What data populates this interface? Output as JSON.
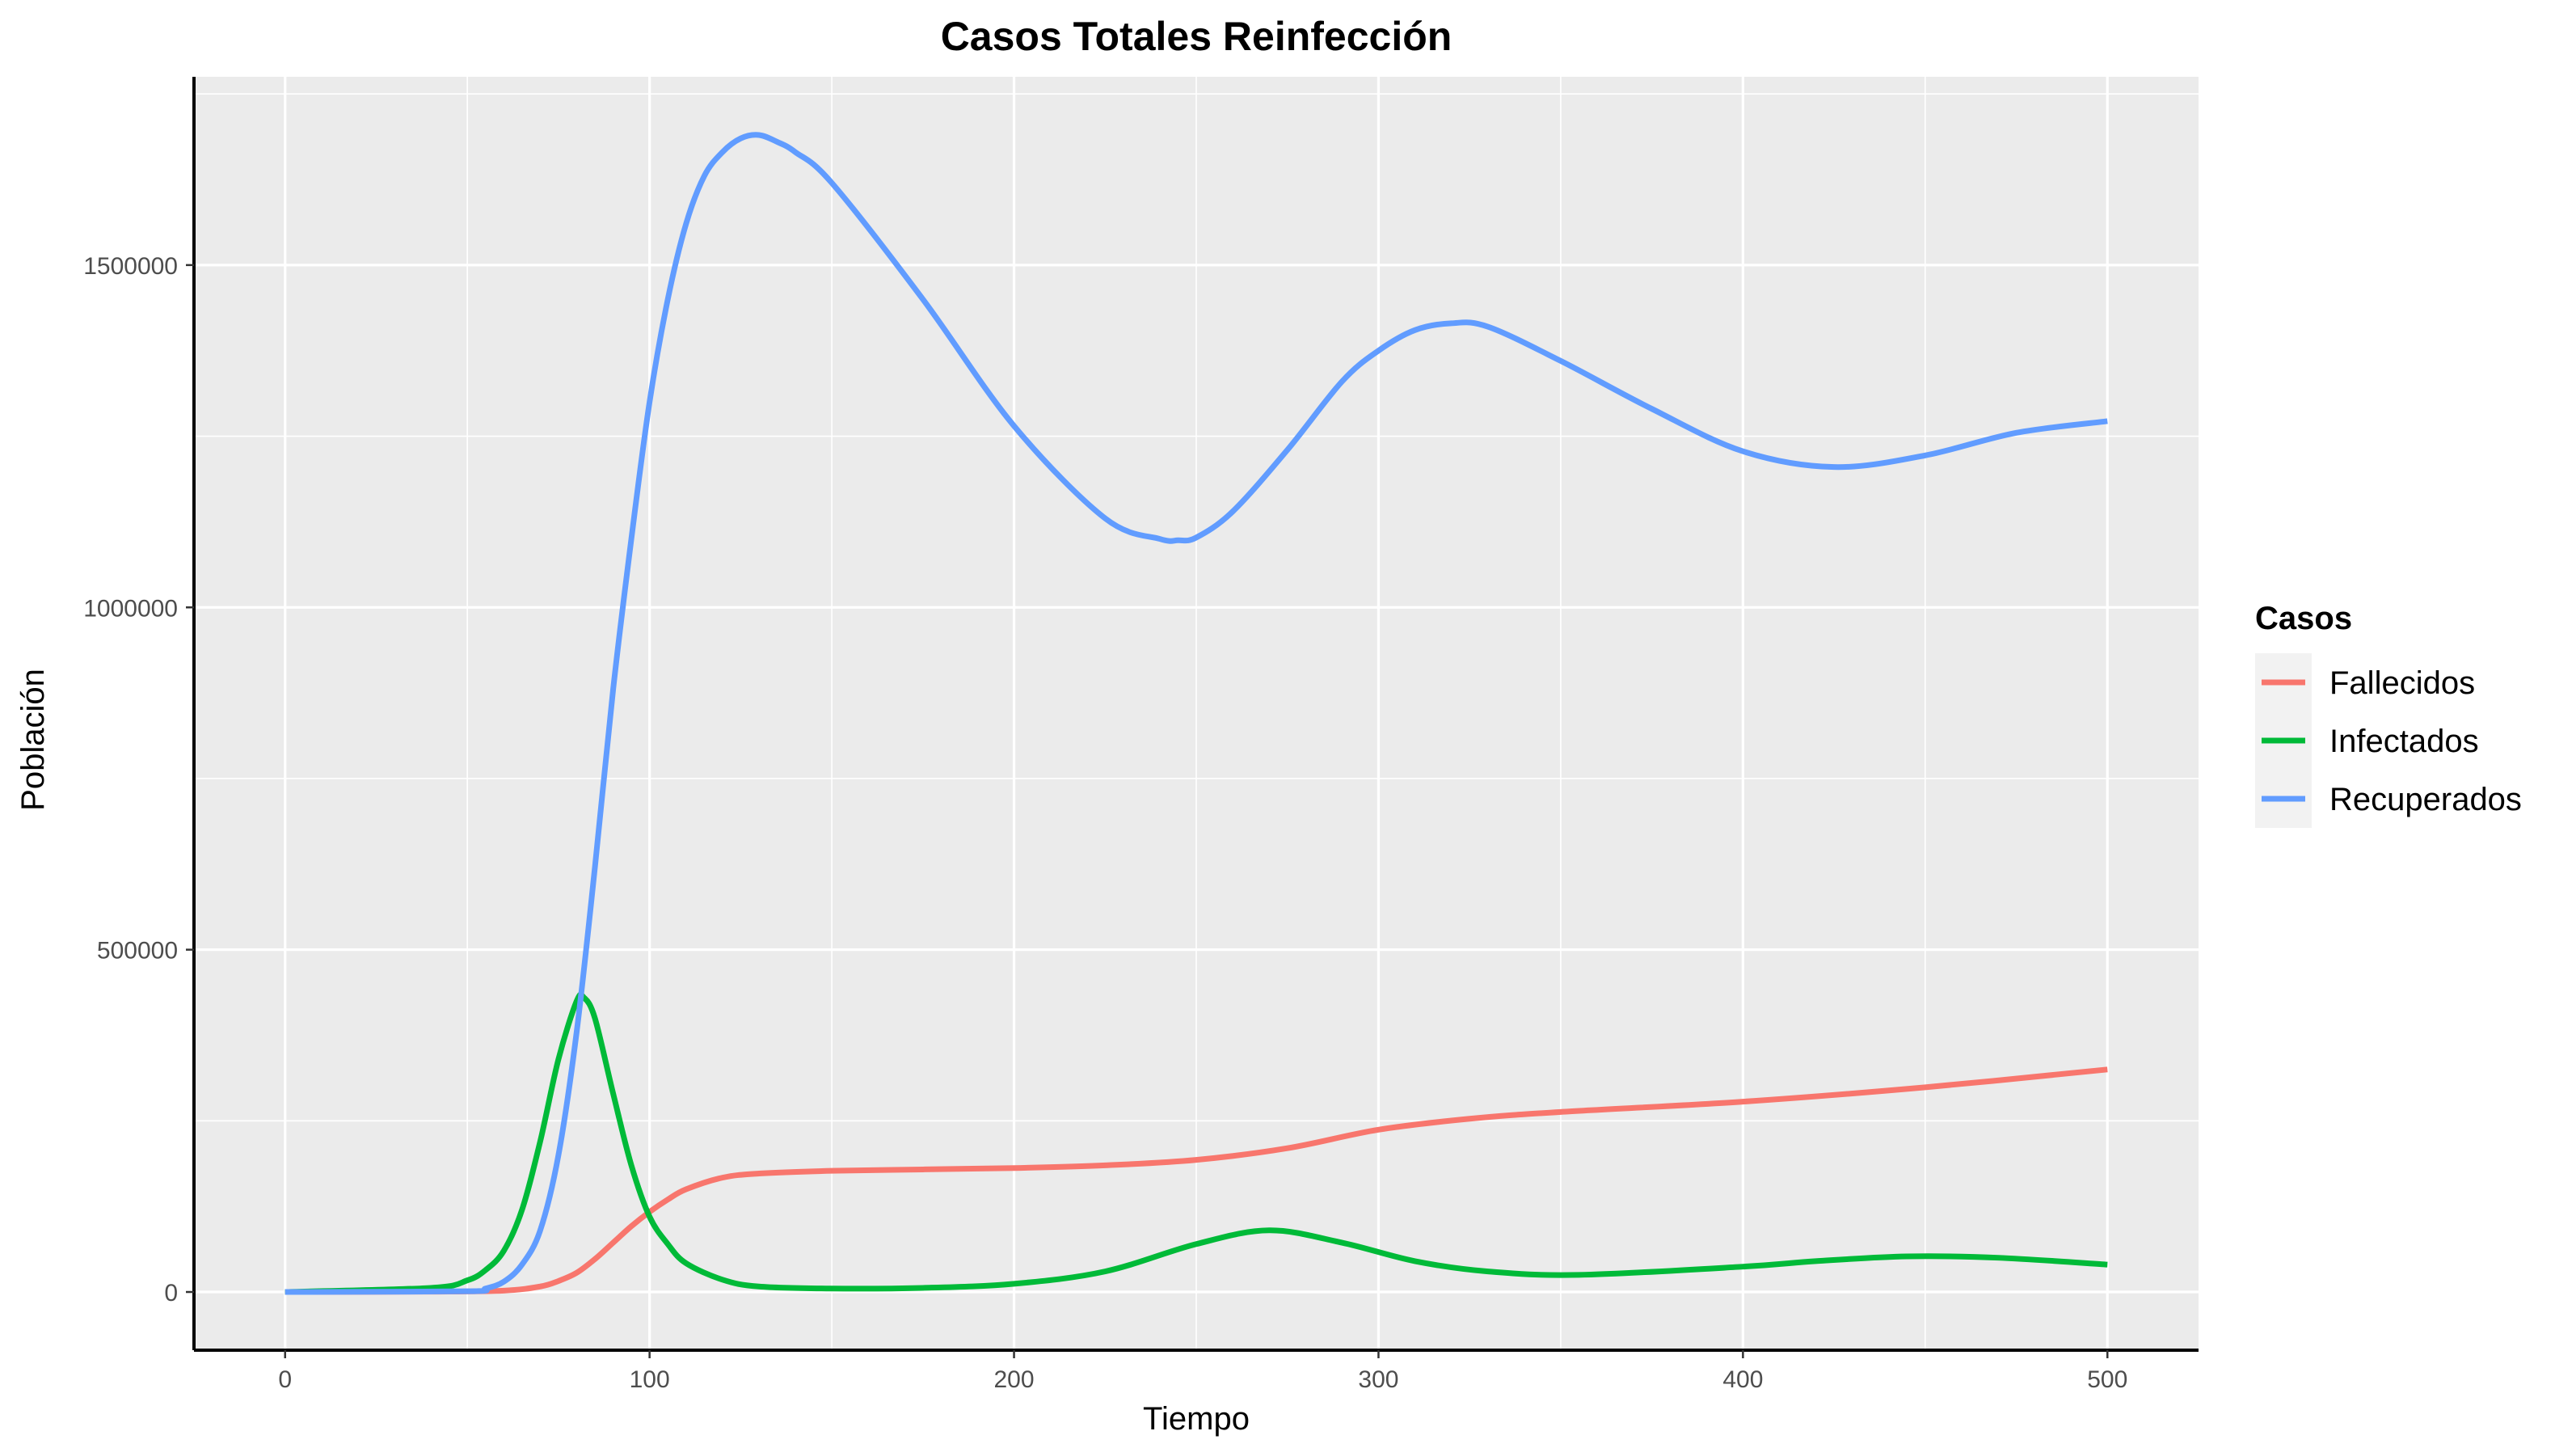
{
  "chart_data": {
    "type": "line",
    "title": "Casos Totales Reinfección",
    "xlabel": "Tiempo",
    "ylabel": "Población",
    "xlim": [
      -25,
      525
    ],
    "ylim": [
      -85000,
      1775000
    ],
    "x_ticks": [
      0,
      100,
      200,
      300,
      400,
      500
    ],
    "y_ticks": [
      0,
      500000,
      1000000,
      1500000
    ],
    "x_tick_labels": [
      "0",
      "100",
      "200",
      "300",
      "400",
      "500"
    ],
    "y_tick_labels": [
      "0",
      "500000",
      "1000000",
      "1500000"
    ],
    "grid": true,
    "legend": {
      "title": "Casos",
      "placement": "right"
    },
    "series": [
      {
        "name": "Fallecidos",
        "color": "#F8766D",
        "x": [
          0,
          40,
          60,
          70,
          75,
          80,
          85,
          90,
          95,
          100,
          105,
          110,
          120,
          130,
          150,
          175,
          200,
          225,
          250,
          275,
          300,
          325,
          350,
          400,
          450,
          500
        ],
        "y": [
          0,
          500,
          2000,
          8000,
          16000,
          28000,
          48000,
          72000,
          96000,
          117000,
          135000,
          150000,
          167000,
          173000,
          177000,
          179000,
          181000,
          185000,
          193000,
          210000,
          237000,
          253000,
          263000,
          278000,
          299000,
          325000
        ]
      },
      {
        "name": "Infectados",
        "color": "#00BA38",
        "x": [
          0,
          40,
          50,
          55,
          60,
          65,
          70,
          75,
          80,
          82,
          85,
          90,
          95,
          100,
          105,
          110,
          120,
          130,
          150,
          175,
          200,
          225,
          250,
          270,
          290,
          310,
          330,
          355,
          400,
          420,
          445,
          470,
          500
        ],
        "y": [
          0,
          6000,
          17000,
          32000,
          60000,
          120000,
          220000,
          340000,
          425000,
          430000,
          400000,
          290000,
          185000,
          110000,
          70000,
          42000,
          18000,
          8000,
          5000,
          6000,
          12000,
          30000,
          70000,
          90000,
          72000,
          45000,
          30000,
          25000,
          37000,
          45000,
          52000,
          50000,
          40000
        ]
      },
      {
        "name": "Recuperados",
        "color": "#619CFF",
        "x": [
          0,
          50,
          55,
          60,
          65,
          70,
          75,
          80,
          85,
          90,
          95,
          100,
          105,
          110,
          115,
          120,
          125,
          130,
          135,
          140,
          150,
          175,
          200,
          225,
          240,
          245,
          250,
          260,
          275,
          290,
          300,
          310,
          320,
          330,
          350,
          375,
          400,
          425,
          450,
          475,
          500
        ],
        "y": [
          0,
          1000,
          5000,
          15000,
          40000,
          90000,
          200000,
          380000,
          620000,
          880000,
          1100000,
          1300000,
          1450000,
          1560000,
          1630000,
          1665000,
          1685000,
          1690000,
          1680000,
          1665000,
          1620000,
          1450000,
          1265000,
          1130000,
          1100000,
          1098000,
          1102000,
          1140000,
          1230000,
          1330000,
          1375000,
          1405000,
          1415000,
          1410000,
          1360000,
          1290000,
          1228000,
          1205000,
          1222000,
          1255000,
          1272000
        ]
      }
    ]
  }
}
